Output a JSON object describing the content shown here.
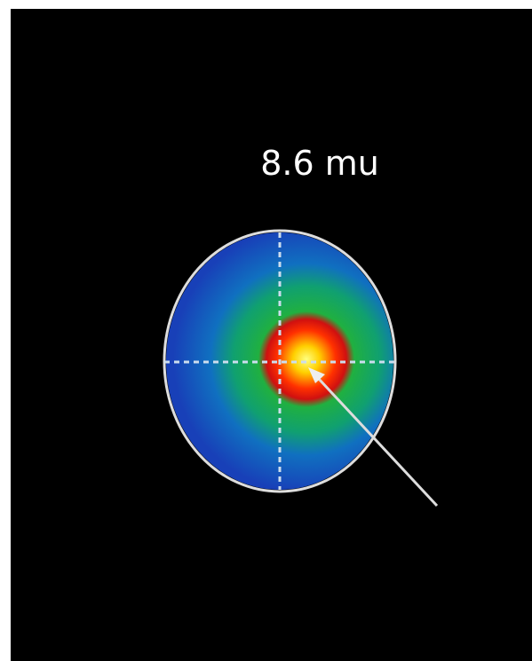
{
  "label": "8.6 mu"
}
